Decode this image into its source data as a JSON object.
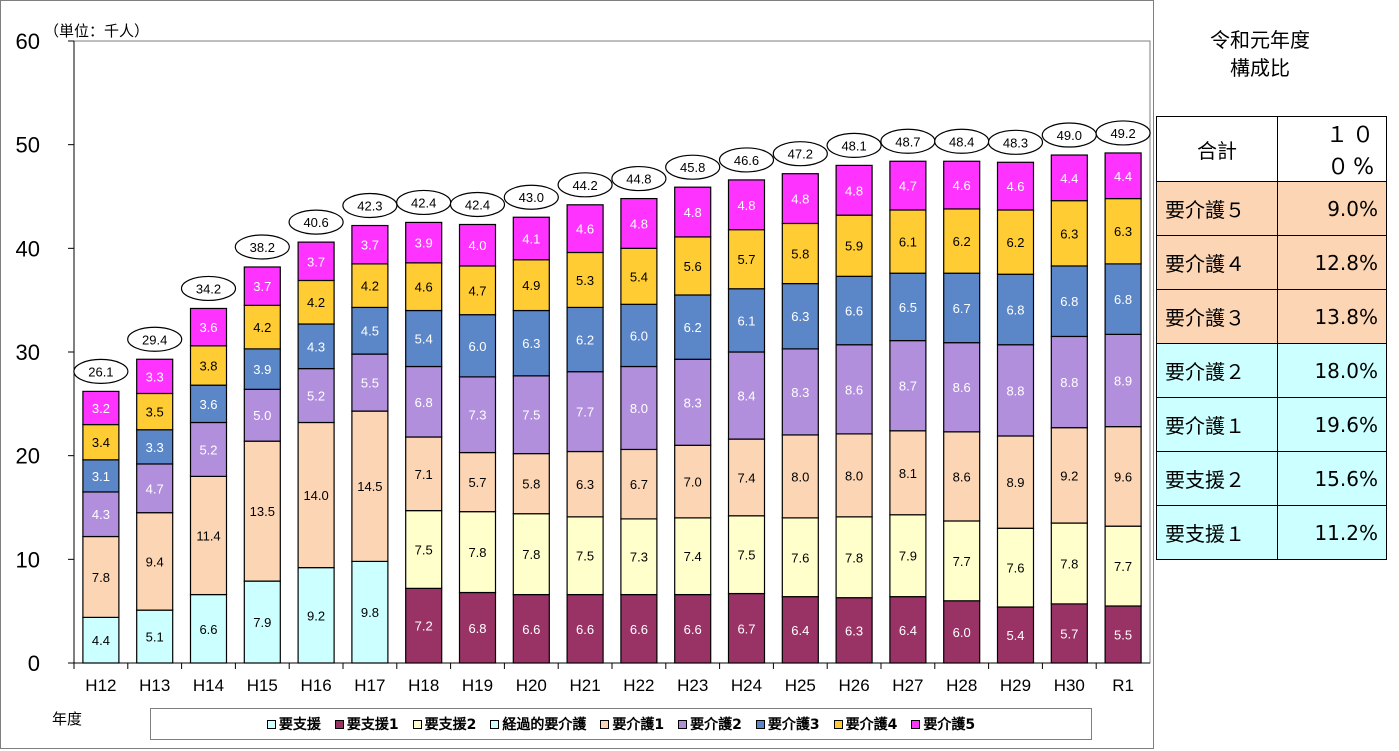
{
  "chart_data": {
    "type": "stacked-bar",
    "unit_label": "（単位：千人）",
    "x_axis_title": "年度",
    "ylim": [
      0,
      60
    ],
    "yticks": [
      0,
      10,
      20,
      30,
      40,
      50,
      60
    ],
    "categories": [
      "H12",
      "H13",
      "H14",
      "H15",
      "H16",
      "H17",
      "H18",
      "H19",
      "H20",
      "H21",
      "H22",
      "H23",
      "H24",
      "H25",
      "H26",
      "H27",
      "H28",
      "H29",
      "H30",
      "R1"
    ],
    "series": [
      {
        "name": "要支援",
        "color": "#ccffff",
        "values": [
          4.4,
          5.1,
          6.6,
          7.9,
          9.2,
          9.8,
          null,
          null,
          null,
          null,
          null,
          null,
          null,
          null,
          null,
          null,
          null,
          null,
          null,
          null
        ]
      },
      {
        "name": "要支援1",
        "color": "#993366",
        "values": [
          null,
          null,
          null,
          null,
          null,
          null,
          7.2,
          6.8,
          6.6,
          6.6,
          6.6,
          6.6,
          6.7,
          6.4,
          6.3,
          6.4,
          6.0,
          5.4,
          5.7,
          5.5
        ]
      },
      {
        "name": "要支援2",
        "color": "#ffffcc",
        "values": [
          null,
          null,
          null,
          null,
          null,
          null,
          7.5,
          7.8,
          7.8,
          7.5,
          7.3,
          7.4,
          7.5,
          7.6,
          7.8,
          7.9,
          7.7,
          7.6,
          7.8,
          7.7
        ]
      },
      {
        "name": "経過的要介護",
        "color": "#ccffff",
        "values": [
          null,
          null,
          null,
          null,
          null,
          null,
          null,
          null,
          null,
          null,
          null,
          null,
          null,
          null,
          null,
          null,
          null,
          null,
          null,
          null
        ]
      },
      {
        "name": "要介護1",
        "color": "#fcd5b4",
        "values": [
          7.8,
          9.4,
          11.4,
          13.5,
          14.0,
          14.5,
          7.1,
          5.7,
          5.8,
          6.3,
          6.7,
          7.0,
          7.4,
          8.0,
          8.0,
          8.1,
          8.6,
          8.9,
          9.2,
          9.6
        ]
      },
      {
        "name": "要介護2",
        "color": "#b18fdc",
        "values": [
          4.3,
          4.7,
          5.2,
          5.0,
          5.2,
          5.5,
          6.8,
          7.3,
          7.5,
          7.7,
          8.0,
          8.3,
          8.4,
          8.3,
          8.6,
          8.7,
          8.6,
          8.8,
          8.8,
          8.9
        ]
      },
      {
        "name": "要介護3",
        "color": "#5b87c8",
        "values": [
          3.1,
          3.3,
          3.6,
          3.9,
          4.3,
          4.5,
          5.4,
          6.0,
          6.3,
          6.2,
          6.0,
          6.2,
          6.1,
          6.3,
          6.6,
          6.5,
          6.7,
          6.8,
          6.8,
          6.8
        ]
      },
      {
        "name": "要介護4",
        "color": "#ffcc33",
        "values": [
          3.4,
          3.5,
          3.8,
          4.2,
          4.2,
          4.2,
          4.6,
          4.7,
          4.9,
          5.3,
          5.4,
          5.6,
          5.7,
          5.8,
          5.9,
          6.1,
          6.2,
          6.2,
          6.3,
          6.3
        ]
      },
      {
        "name": "要介護5",
        "color": "#ff33ff",
        "values": [
          3.2,
          3.3,
          3.6,
          3.7,
          3.7,
          3.7,
          3.9,
          4.0,
          4.1,
          4.6,
          4.8,
          4.8,
          4.8,
          4.8,
          4.8,
          4.7,
          4.6,
          4.6,
          4.4,
          4.4
        ]
      }
    ],
    "totals": [
      "26.1",
      "29.4",
      "34.2",
      "38.2",
      "40.6",
      "42.3",
      "42.4",
      "42.4",
      "43.0",
      "44.2",
      "44.8",
      "45.8",
      "46.6",
      "47.2",
      "48.1",
      "48.7",
      "48.4",
      "48.3",
      "49.0",
      "49.2"
    ],
    "grid": false,
    "legend_position": "bottom"
  },
  "ratio_panel": {
    "title_line1": "令和元年度",
    "title_line2": "構成比",
    "rows": [
      {
        "label": "合計",
        "value": "１００%",
        "color": "#ffffff"
      },
      {
        "label": "要介護５",
        "value": "9.0%",
        "color": "#fcd5b4"
      },
      {
        "label": "要介護４",
        "value": "12.8%",
        "color": "#fcd5b4"
      },
      {
        "label": "要介護３",
        "value": "13.8%",
        "color": "#fcd5b4"
      },
      {
        "label": "要介護２",
        "value": "18.0%",
        "color": "#ccffff"
      },
      {
        "label": "要介護１",
        "value": "19.6%",
        "color": "#ccffff"
      },
      {
        "label": "要支援２",
        "value": "15.6%",
        "color": "#ccffff"
      },
      {
        "label": "要支援１",
        "value": "11.2%",
        "color": "#ccffff"
      }
    ]
  }
}
